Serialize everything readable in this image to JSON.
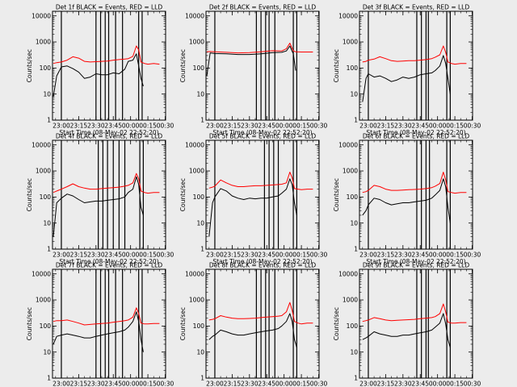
{
  "figure": {
    "background": "#ececec",
    "colors": {
      "events": "#000000",
      "lld": "#ff0000",
      "axes": "#000000"
    }
  },
  "shared_axes": {
    "type": "line",
    "xlabel": "Start Time (08-May-02 22:52:20)",
    "ylabel": "Counts/sec",
    "x_tick_labels": [
      "23:00",
      "23:15",
      "23:30",
      "23:45",
      "00:00",
      "00:15",
      "00:30"
    ],
    "y_tick_labels": [
      "1",
      "10",
      "100",
      "1000",
      "10000"
    ],
    "xlim_minutes_after_start": [
      0,
      98
    ],
    "ylim": [
      1,
      15000
    ],
    "yscale": "log"
  },
  "chart_data": [
    {
      "type": "line",
      "title": "Det 1f BLACK = Events, RED = LLD",
      "vlines_clock": [
        "23:00",
        "23:30",
        "23:34",
        "23:38",
        "23:41",
        "23:47",
        "23:53",
        "00:07",
        "00:10"
      ],
      "series": [
        {
          "name": "Events",
          "color": "#000000",
          "x_clock": [
            "22:53",
            "22:56",
            "23:00",
            "23:05",
            "23:10",
            "23:15",
            "23:20",
            "23:25",
            "23:30",
            "23:35",
            "23:40",
            "23:45",
            "23:50",
            "23:55",
            "23:58",
            "00:02",
            "00:05",
            "00:07",
            "00:09",
            "00:11"
          ],
          "y": [
            8,
            50,
            110,
            120,
            95,
            70,
            40,
            45,
            60,
            55,
            55,
            65,
            60,
            90,
            180,
            200,
            350,
            120,
            40,
            20
          ]
        },
        {
          "name": "LLD",
          "color": "#ff0000",
          "x_clock": [
            "22:53",
            "22:56",
            "23:00",
            "23:05",
            "23:10",
            "23:15",
            "23:20",
            "23:25",
            "23:30",
            "23:35",
            "23:40",
            "23:45",
            "23:50",
            "23:55",
            "23:58",
            "00:02",
            "00:05",
            "00:07",
            "00:09",
            "00:12",
            "00:15",
            "00:20",
            "00:25"
          ],
          "y": [
            150,
            160,
            170,
            200,
            270,
            240,
            180,
            170,
            175,
            180,
            185,
            200,
            210,
            220,
            230,
            280,
            700,
            500,
            170,
            150,
            140,
            150,
            140
          ]
        }
      ]
    },
    {
      "type": "line",
      "title": "Det 2f BLACK = Events, RED = LLD",
      "vlines_clock": [
        "23:00",
        "23:36",
        "23:40",
        "23:44",
        "23:47",
        "23:52",
        "00:08",
        "00:11"
      ],
      "series": [
        {
          "name": "Events",
          "color": "#000000",
          "x_clock": [
            "22:53",
            "22:56",
            "23:00",
            "23:10",
            "23:20",
            "23:30",
            "23:40",
            "23:50",
            "23:58",
            "00:02",
            "00:05",
            "00:08",
            "00:10"
          ],
          "y": [
            50,
            380,
            360,
            350,
            330,
            330,
            350,
            390,
            400,
            450,
            700,
            350,
            80
          ]
        },
        {
          "name": "LLD",
          "color": "#ff0000",
          "x_clock": [
            "22:53",
            "22:56",
            "23:00",
            "23:10",
            "23:20",
            "23:30",
            "23:40",
            "23:50",
            "23:58",
            "00:02",
            "00:05",
            "00:08",
            "00:10",
            "00:15",
            "00:20",
            "00:25"
          ],
          "y": [
            420,
            430,
            420,
            400,
            380,
            390,
            420,
            460,
            450,
            550,
            900,
            450,
            420,
            410,
            410,
            410
          ]
        }
      ]
    },
    {
      "type": "line",
      "title": "Det 3f BLACK = Events, RED = LLD",
      "vlines_clock": [
        "23:00",
        "23:42",
        "23:46",
        "23:50",
        "23:52",
        "00:08",
        "00:11"
      ],
      "series": [
        {
          "name": "Events",
          "color": "#000000",
          "x_clock": [
            "22:55",
            "22:58",
            "23:00",
            "23:05",
            "23:10",
            "23:15",
            "23:20",
            "23:25",
            "23:30",
            "23:35",
            "23:40",
            "23:45",
            "23:50",
            "23:55",
            "23:58",
            "00:02",
            "00:05",
            "00:07",
            "00:09",
            "00:11"
          ],
          "y": [
            5,
            40,
            60,
            45,
            50,
            40,
            30,
            35,
            45,
            40,
            45,
            55,
            60,
            65,
            80,
            120,
            300,
            150,
            40,
            10
          ]
        },
        {
          "name": "LLD",
          "color": "#ff0000",
          "x_clock": [
            "22:55",
            "22:58",
            "23:00",
            "23:05",
            "23:10",
            "23:15",
            "23:20",
            "23:25",
            "23:30",
            "23:35",
            "23:40",
            "23:45",
            "23:50",
            "23:55",
            "23:58",
            "00:02",
            "00:05",
            "00:07",
            "00:09",
            "00:12",
            "00:15",
            "00:20",
            "00:25"
          ],
          "y": [
            170,
            180,
            200,
            220,
            270,
            230,
            190,
            180,
            185,
            190,
            190,
            200,
            210,
            230,
            260,
            320,
            700,
            400,
            170,
            150,
            140,
            150,
            150
          ]
        }
      ]
    },
    {
      "type": "line",
      "title": "Det 4f BLACK = Events, RED = LLD",
      "vlines_clock": [
        "23:00",
        "23:32",
        "23:36",
        "23:40",
        "23:45",
        "23:50",
        "23:55",
        "00:08",
        "00:11"
      ],
      "series": [
        {
          "name": "Events",
          "color": "#000000",
          "x_clock": [
            "22:53",
            "22:56",
            "23:00",
            "23:05",
            "23:10",
            "23:15",
            "23:20",
            "23:25",
            "23:30",
            "23:35",
            "23:40",
            "23:45",
            "23:50",
            "23:55",
            "23:58",
            "00:02",
            "00:05",
            "00:07",
            "00:09",
            "00:11"
          ],
          "y": [
            3,
            60,
            90,
            130,
            110,
            80,
            60,
            65,
            70,
            70,
            75,
            80,
            85,
            100,
            150,
            200,
            600,
            300,
            40,
            20
          ]
        },
        {
          "name": "LLD",
          "color": "#ff0000",
          "x_clock": [
            "22:53",
            "22:56",
            "23:00",
            "23:05",
            "23:10",
            "23:15",
            "23:20",
            "23:25",
            "23:30",
            "23:35",
            "23:40",
            "23:45",
            "23:50",
            "23:55",
            "23:58",
            "00:02",
            "00:05",
            "00:07",
            "00:09",
            "00:12",
            "00:15",
            "00:20",
            "00:25"
          ],
          "y": [
            150,
            170,
            200,
            250,
            320,
            250,
            220,
            200,
            200,
            210,
            220,
            230,
            240,
            260,
            280,
            350,
            800,
            500,
            170,
            150,
            140,
            150,
            150
          ]
        }
      ]
    },
    {
      "type": "line",
      "title": "Det 5f BLACK = Events, RED = LLD",
      "vlines_clock": [
        "23:00",
        "23:43",
        "23:47",
        "23:51",
        "23:55",
        "00:08",
        "00:11"
      ],
      "series": [
        {
          "name": "Events",
          "color": "#000000",
          "x_clock": [
            "22:55",
            "22:58",
            "23:00",
            "23:05",
            "23:10",
            "23:15",
            "23:20",
            "23:25",
            "23:30",
            "23:35",
            "23:40",
            "23:45",
            "23:50",
            "23:55",
            "23:58",
            "00:02",
            "00:05",
            "00:07",
            "00:09",
            "00:11"
          ],
          "y": [
            3,
            60,
            100,
            210,
            170,
            110,
            90,
            80,
            90,
            85,
            90,
            90,
            100,
            110,
            140,
            200,
            500,
            300,
            60,
            20
          ]
        },
        {
          "name": "LLD",
          "color": "#ff0000",
          "x_clock": [
            "22:55",
            "22:58",
            "23:00",
            "23:05",
            "23:10",
            "23:15",
            "23:20",
            "23:25",
            "23:30",
            "23:35",
            "23:40",
            "23:45",
            "23:50",
            "23:55",
            "23:58",
            "00:02",
            "00:05",
            "00:07",
            "00:09",
            "00:12",
            "00:15",
            "00:20",
            "00:25"
          ],
          "y": [
            220,
            240,
            260,
            450,
            350,
            280,
            250,
            250,
            260,
            270,
            270,
            280,
            290,
            300,
            310,
            350,
            900,
            550,
            210,
            200,
            190,
            200,
            200
          ]
        }
      ]
    },
    {
      "type": "line",
      "title": "Det 6f BLACK = Events, RED = LLD",
      "vlines_clock": [
        "23:00",
        "23:42",
        "23:46",
        "23:50",
        "23:53",
        "00:08",
        "00:11"
      ],
      "series": [
        {
          "name": "Events",
          "color": "#000000",
          "x_clock": [
            "22:55",
            "22:58",
            "23:00",
            "23:05",
            "23:10",
            "23:15",
            "23:20",
            "23:25",
            "23:30",
            "23:35",
            "23:40",
            "23:45",
            "23:50",
            "23:55",
            "23:58",
            "00:02",
            "00:05",
            "00:07",
            "00:09",
            "00:11"
          ],
          "y": [
            20,
            30,
            50,
            90,
            80,
            60,
            50,
            55,
            60,
            60,
            65,
            70,
            75,
            90,
            120,
            180,
            500,
            250,
            40,
            10
          ]
        },
        {
          "name": "LLD",
          "color": "#ff0000",
          "x_clock": [
            "22:55",
            "22:58",
            "23:00",
            "23:05",
            "23:10",
            "23:15",
            "23:20",
            "23:25",
            "23:30",
            "23:35",
            "23:40",
            "23:45",
            "23:50",
            "23:55",
            "23:58",
            "00:02",
            "00:05",
            "00:07",
            "00:09",
            "00:12",
            "00:15",
            "00:20",
            "00:25"
          ],
          "y": [
            150,
            160,
            180,
            280,
            250,
            200,
            180,
            180,
            185,
            190,
            195,
            200,
            210,
            230,
            260,
            330,
            900,
            450,
            160,
            150,
            140,
            150,
            150
          ]
        }
      ]
    },
    {
      "type": "line",
      "title": "Det 7f BLACK = Events, RED = LLD",
      "vlines_clock": [
        "23:00",
        "23:30",
        "23:34",
        "23:38",
        "23:41",
        "23:47",
        "23:53",
        "00:07",
        "00:10"
      ],
      "series": [
        {
          "name": "Events",
          "color": "#000000",
          "x_clock": [
            "22:53",
            "22:56",
            "23:00",
            "23:05",
            "23:10",
            "23:15",
            "23:20",
            "23:25",
            "23:30",
            "23:35",
            "23:40",
            "23:45",
            "23:50",
            "23:55",
            "23:58",
            "00:02",
            "00:05",
            "00:07",
            "00:09",
            "00:11"
          ],
          "y": [
            20,
            40,
            45,
            50,
            45,
            40,
            35,
            35,
            40,
            45,
            50,
            55,
            60,
            70,
            90,
            150,
            350,
            150,
            30,
            10
          ]
        },
        {
          "name": "LLD",
          "color": "#ff0000",
          "x_clock": [
            "22:53",
            "22:56",
            "23:00",
            "23:05",
            "23:10",
            "23:15",
            "23:20",
            "23:25",
            "23:30",
            "23:35",
            "23:40",
            "23:45",
            "23:50",
            "23:55",
            "23:58",
            "00:02",
            "00:05",
            "00:07",
            "00:09",
            "00:12",
            "00:15",
            "00:20",
            "00:25"
          ],
          "y": [
            150,
            160,
            160,
            170,
            150,
            130,
            110,
            115,
            120,
            125,
            130,
            140,
            150,
            160,
            170,
            220,
            500,
            300,
            130,
            120,
            120,
            125,
            125
          ]
        }
      ]
    },
    {
      "type": "line",
      "title": "Det 8f BLACK = Events, RED = LLD",
      "vlines_clock": [
        "23:00",
        "23:36",
        "23:40",
        "23:44",
        "23:47",
        "23:52",
        "00:08",
        "00:11"
      ],
      "series": [
        {
          "name": "Events",
          "color": "#000000",
          "x_clock": [
            "22:55",
            "22:58",
            "23:00",
            "23:05",
            "23:10",
            "23:15",
            "23:20",
            "23:25",
            "23:30",
            "23:35",
            "23:40",
            "23:45",
            "23:50",
            "23:55",
            "23:58",
            "00:02",
            "00:05",
            "00:07",
            "00:09",
            "00:11"
          ],
          "y": [
            30,
            40,
            45,
            70,
            60,
            50,
            45,
            45,
            50,
            55,
            60,
            65,
            70,
            80,
            100,
            150,
            300,
            150,
            30,
            15
          ]
        },
        {
          "name": "LLD",
          "color": "#ff0000",
          "x_clock": [
            "22:55",
            "22:58",
            "23:00",
            "23:05",
            "23:10",
            "23:15",
            "23:20",
            "23:25",
            "23:30",
            "23:35",
            "23:40",
            "23:45",
            "23:50",
            "23:55",
            "23:58",
            "00:02",
            "00:05",
            "00:07",
            "00:09",
            "00:12",
            "00:15",
            "00:20",
            "00:25"
          ],
          "y": [
            170,
            180,
            190,
            250,
            220,
            200,
            190,
            190,
            195,
            200,
            210,
            220,
            230,
            240,
            250,
            350,
            800,
            400,
            150,
            130,
            120,
            130,
            130
          ]
        }
      ]
    },
    {
      "type": "line",
      "title": "Det 9f BLACK = Events, RED = LLD",
      "vlines_clock": [
        "23:00",
        "23:42",
        "23:46",
        "23:50",
        "23:52",
        "00:08",
        "00:11"
      ],
      "series": [
        {
          "name": "Events",
          "color": "#000000",
          "x_clock": [
            "22:55",
            "22:58",
            "23:00",
            "23:05",
            "23:10",
            "23:15",
            "23:20",
            "23:25",
            "23:30",
            "23:35",
            "23:40",
            "23:45",
            "23:50",
            "23:55",
            "23:58",
            "00:02",
            "00:05",
            "00:07",
            "00:09",
            "00:11"
          ],
          "y": [
            30,
            35,
            40,
            60,
            50,
            45,
            40,
            40,
            45,
            45,
            50,
            55,
            60,
            70,
            90,
            130,
            300,
            120,
            30,
            15
          ]
        },
        {
          "name": "LLD",
          "color": "#ff0000",
          "x_clock": [
            "22:55",
            "22:58",
            "23:00",
            "23:05",
            "23:10",
            "23:15",
            "23:20",
            "23:25",
            "23:30",
            "23:35",
            "23:40",
            "23:45",
            "23:50",
            "23:55",
            "23:58",
            "00:02",
            "00:05",
            "00:07",
            "00:09",
            "00:12",
            "00:15",
            "00:20",
            "00:25"
          ],
          "y": [
            150,
            160,
            170,
            210,
            190,
            170,
            160,
            165,
            170,
            175,
            180,
            190,
            200,
            210,
            230,
            300,
            700,
            350,
            140,
            130,
            130,
            135,
            135
          ]
        }
      ]
    }
  ]
}
